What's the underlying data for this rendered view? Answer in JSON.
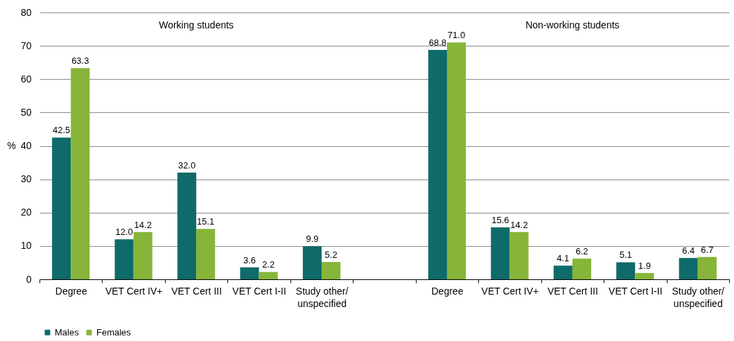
{
  "chart_data": {
    "type": "bar",
    "categories": [
      "Degree",
      "VET Cert IV+",
      "VET Cert III",
      "VET Cert I-II",
      "Study other/\nunspecified",
      null,
      "Degree",
      "VET Cert IV+",
      "VET Cert III",
      "VET Cert I-II",
      "Study other/\nunspecified"
    ],
    "series": [
      {
        "name": "Males",
        "color": "#0f6b69",
        "values": [
          42.5,
          12.0,
          32.0,
          3.6,
          9.9,
          null,
          68.8,
          15.6,
          4.1,
          5.1,
          6.4
        ],
        "value_labels": [
          "42.5",
          "12.0",
          "32.0",
          "3.6",
          "9.9",
          null,
          "68.8",
          "15.6",
          "4.1",
          "5.1",
          "6.4"
        ]
      },
      {
        "name": "Females",
        "color": "#86b539",
        "values": [
          63.3,
          14.2,
          15.1,
          2.2,
          5.2,
          null,
          71.0,
          14.2,
          6.2,
          1.9,
          6.7
        ],
        "value_labels": [
          "63.3",
          "14.2",
          "15.1",
          "2.2",
          "5.2",
          null,
          "71.0",
          "14.2",
          "6.2",
          "1.9",
          "6.7"
        ]
      }
    ],
    "ylabel": "%",
    "ylim": [
      0,
      80
    ],
    "yticks": [
      0,
      10,
      20,
      30,
      40,
      50,
      60,
      70,
      80
    ],
    "grid": "y",
    "legend": "bottom left",
    "annotations": [
      "Working students",
      "Non-working students"
    ]
  }
}
